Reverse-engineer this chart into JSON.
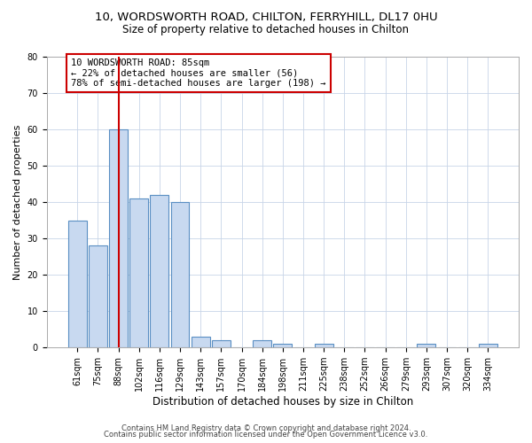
{
  "title_line1": "10, WORDSWORTH ROAD, CHILTON, FERRYHILL, DL17 0HU",
  "title_line2": "Size of property relative to detached houses in Chilton",
  "xlabel": "Distribution of detached houses by size in Chilton",
  "ylabel": "Number of detached properties",
  "categories": [
    "61sqm",
    "75sqm",
    "88sqm",
    "102sqm",
    "116sqm",
    "129sqm",
    "143sqm",
    "157sqm",
    "170sqm",
    "184sqm",
    "198sqm",
    "211sqm",
    "225sqm",
    "238sqm",
    "252sqm",
    "266sqm",
    "279sqm",
    "293sqm",
    "307sqm",
    "320sqm",
    "334sqm"
  ],
  "values": [
    35,
    28,
    60,
    41,
    42,
    40,
    3,
    2,
    0,
    2,
    1,
    0,
    1,
    0,
    0,
    0,
    0,
    1,
    0,
    0,
    1
  ],
  "bar_color": "#c8d9f0",
  "bar_edge_color": "#5a8fc3",
  "red_line_index": 2,
  "ylim": [
    0,
    80
  ],
  "yticks": [
    0,
    10,
    20,
    30,
    40,
    50,
    60,
    70,
    80
  ],
  "annotation_text": "10 WORDSWORTH ROAD: 85sqm\n← 22% of detached houses are smaller (56)\n78% of semi-detached houses are larger (198) →",
  "annotation_box_color": "#ffffff",
  "annotation_box_edge_color": "#cc0000",
  "footer_line1": "Contains HM Land Registry data © Crown copyright and database right 2024.",
  "footer_line2": "Contains public sector information licensed under the Open Government Licence v3.0.",
  "background_color": "#ffffff",
  "grid_color": "#c8d4e8",
  "title1_fontsize": 9.5,
  "title2_fontsize": 8.5,
  "ylabel_fontsize": 8,
  "xlabel_fontsize": 8.5,
  "tick_fontsize": 7,
  "annot_fontsize": 7.5,
  "footer_fontsize": 6
}
